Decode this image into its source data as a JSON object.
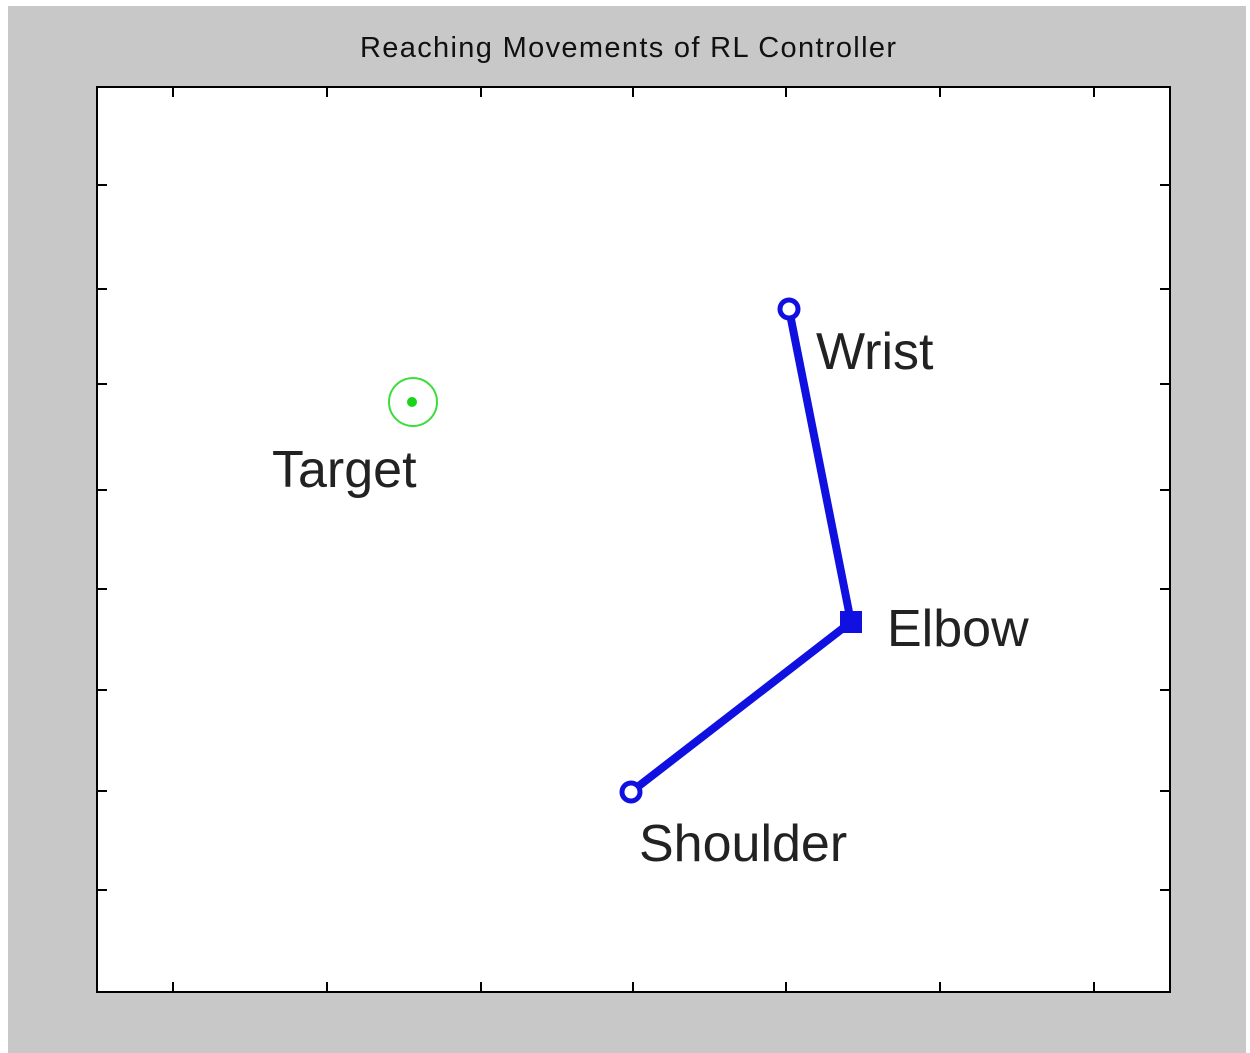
{
  "window": {
    "title": "Reaching Movements of RL Controller"
  },
  "labels": {
    "target": "Target",
    "wrist": "Wrist",
    "elbow": "Elbow",
    "shoulder": "Shoulder"
  }
}
